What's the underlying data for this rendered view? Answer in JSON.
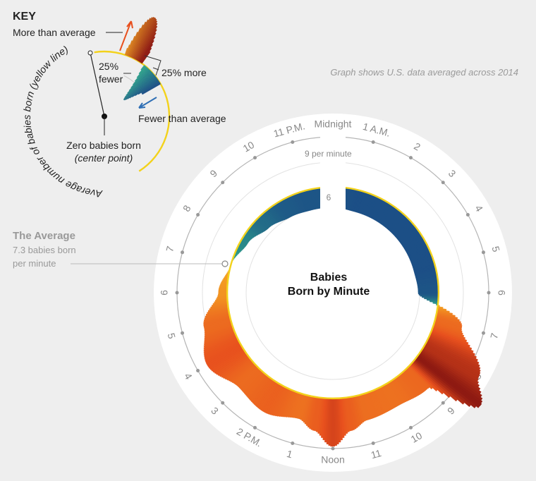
{
  "note": "Graph shows U.S. data averaged across 2014",
  "key": {
    "title": "KEY",
    "more_than_average": "More than average",
    "pct_fewer_line1": "25%",
    "pct_fewer_line2": "fewer",
    "pct_more": "25% more",
    "fewer_than_average": "Fewer than average",
    "zero_line1": "Zero babies born",
    "zero_line2": "(center point)",
    "ring_label": "Average number of babies born (yellow line)"
  },
  "average_callout": {
    "title": "The Average",
    "line1": "7.3 babies born",
    "line2": "per minute"
  },
  "colors": {
    "above_dark": "#8e1a12",
    "above_mid": "#e8501e",
    "above_light": "#f5a623",
    "below_dark": "#1c4f86",
    "below_light": "#2fa48c",
    "average_line": "#f3d21b"
  },
  "chart_data": {
    "type": "area",
    "title_line1": "Babies",
    "title_line2": "Born by Minute",
    "layout": "radial 24-hour clock, midnight at top",
    "average": 7.3,
    "units": "babies born per minute",
    "scale_labels": [
      "9 per minute",
      "6"
    ],
    "hour_labels": [
      "Midnight",
      "1 A.M.",
      "2",
      "3",
      "4",
      "5",
      "6",
      "7",
      "8",
      "9",
      "10",
      "11",
      "Noon",
      "1",
      "2 P.M.",
      "3",
      "4",
      "5",
      "6",
      "7",
      "8",
      "9",
      "10",
      "11 P.M."
    ],
    "x": [
      0,
      1,
      2,
      3,
      4,
      5,
      6,
      7,
      8,
      8.5,
      9,
      10,
      11,
      11.5,
      12,
      12.5,
      13,
      14,
      15,
      16,
      17,
      18,
      19,
      20,
      21,
      22,
      23,
      24
    ],
    "y": [
      5.9,
      5.8,
      5.8,
      5.8,
      5.8,
      5.8,
      5.9,
      9.2,
      11.6,
      12.8,
      9.3,
      9.0,
      9.1,
      9.6,
      10.6,
      9.6,
      9.0,
      9.5,
      9.2,
      10.0,
      9.2,
      7.9,
      7.3,
      6.8,
      6.3,
      6.0,
      5.9,
      5.9
    ]
  }
}
